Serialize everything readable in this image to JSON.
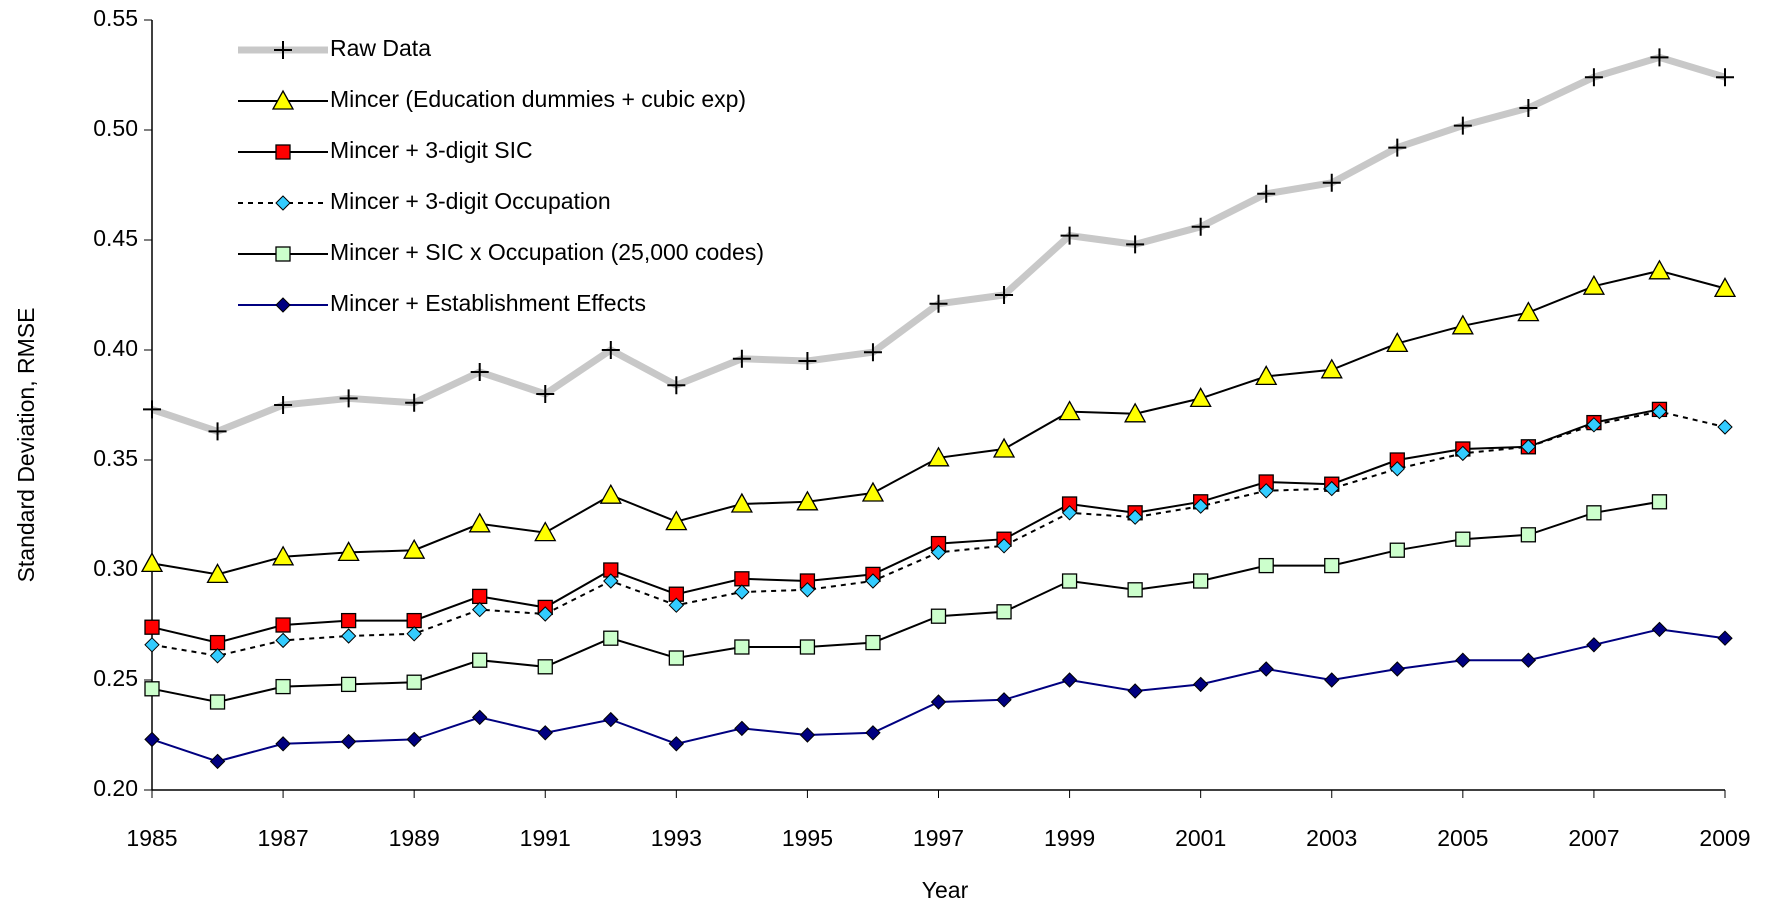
{
  "chart_data": {
    "type": "line",
    "x_label": "Year",
    "y_label": "Standard Deviation, RMSE",
    "x": [
      1985,
      1986,
      1987,
      1988,
      1989,
      1990,
      1991,
      1992,
      1993,
      1994,
      1995,
      1996,
      1997,
      1998,
      1999,
      2000,
      2001,
      2002,
      2003,
      2004,
      2005,
      2006,
      2007,
      2008,
      2009
    ],
    "xlim": [
      1985,
      2009
    ],
    "xticks": [
      1985,
      1987,
      1989,
      1991,
      1993,
      1995,
      1997,
      1999,
      2001,
      2003,
      2005,
      2007,
      2009
    ],
    "ylim": [
      0.2,
      0.55
    ],
    "yticks": [
      {
        "value": 0.2,
        "label": "0.20"
      },
      {
        "value": 0.25,
        "label": "0.25"
      },
      {
        "value": 0.3,
        "label": "0.30"
      },
      {
        "value": 0.35,
        "label": "0.35"
      },
      {
        "value": 0.4,
        "label": "0.40"
      },
      {
        "value": 0.45,
        "label": "0.45"
      },
      {
        "value": 0.5,
        "label": "0.50"
      },
      {
        "value": 0.55,
        "label": "0.55"
      }
    ],
    "legend": "upper left",
    "series": [
      {
        "name": "Raw Data",
        "color": "#c8c8c8",
        "marker": "plus",
        "marker_color": "#000000",
        "line_width": 7,
        "values": [
          0.373,
          0.363,
          0.375,
          0.378,
          0.376,
          0.39,
          0.38,
          0.4,
          0.384,
          0.396,
          0.395,
          0.399,
          0.421,
          0.425,
          0.452,
          0.448,
          0.456,
          0.471,
          0.476,
          0.492,
          0.502,
          0.51,
          0.524,
          0.533,
          0.524
        ]
      },
      {
        "name": "Mincer (Education dummies + cubic exp)",
        "color": "#000000",
        "marker": "triangle",
        "marker_color": "#ffff00",
        "line_width": 2,
        "values": [
          0.303,
          0.298,
          0.306,
          0.308,
          0.309,
          0.321,
          0.317,
          0.334,
          0.322,
          0.33,
          0.331,
          0.335,
          0.351,
          0.355,
          0.372,
          0.371,
          0.378,
          0.388,
          0.391,
          0.403,
          0.411,
          0.417,
          0.429,
          0.436,
          0.428
        ]
      },
      {
        "name": "Mincer + 3-digit SIC",
        "color": "#000000",
        "marker": "square",
        "marker_color": "#ff0000",
        "line_width": 2,
        "values": [
          0.274,
          0.267,
          0.275,
          0.277,
          0.277,
          0.288,
          0.283,
          0.3,
          0.289,
          0.296,
          0.295,
          0.298,
          0.312,
          0.314,
          0.33,
          0.326,
          0.331,
          0.34,
          0.339,
          0.35,
          0.355,
          0.356,
          0.367,
          0.373,
          null
        ]
      },
      {
        "name": "Mincer + 3-digit Occupation",
        "color": "#000000",
        "marker": "diamond",
        "marker_color": "#33ccff",
        "line_width": 2,
        "dashed": true,
        "values": [
          0.266,
          0.261,
          0.268,
          0.27,
          0.271,
          0.282,
          0.28,
          0.295,
          0.284,
          0.29,
          0.291,
          0.295,
          0.308,
          0.311,
          0.326,
          0.324,
          0.329,
          0.336,
          0.337,
          0.346,
          0.353,
          0.356,
          0.366,
          0.372,
          0.365
        ]
      },
      {
        "name": "Mincer + SIC x Occupation (25,000 codes)",
        "color": "#000000",
        "marker": "square",
        "marker_color": "#ccffcc",
        "line_width": 2,
        "values": [
          0.246,
          0.24,
          0.247,
          0.248,
          0.249,
          0.259,
          0.256,
          0.269,
          0.26,
          0.265,
          0.265,
          0.267,
          0.279,
          0.281,
          0.295,
          0.291,
          0.295,
          0.302,
          0.302,
          0.309,
          0.314,
          0.316,
          0.326,
          0.331,
          null
        ]
      },
      {
        "name": "Mincer + Establishment Effects",
        "color": "#000080",
        "marker": "diamond",
        "marker_color": "#000080",
        "line_width": 2,
        "values": [
          0.223,
          0.213,
          0.221,
          0.222,
          0.223,
          0.233,
          0.226,
          0.232,
          0.221,
          0.228,
          0.225,
          0.226,
          0.24,
          0.241,
          0.25,
          0.245,
          0.248,
          0.255,
          0.25,
          0.255,
          0.259,
          0.259,
          0.266,
          0.273,
          0.269
        ]
      }
    ]
  }
}
